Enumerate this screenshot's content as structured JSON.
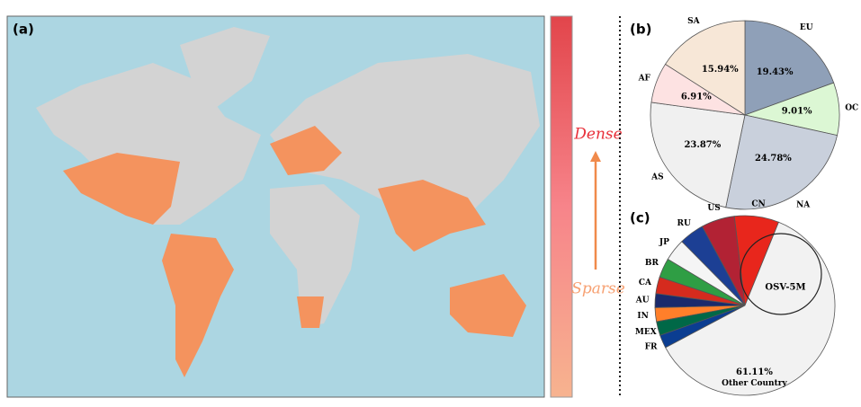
{
  "map": {
    "panel_label": "(a)",
    "dense_label": "Dense",
    "sparse_label": "Sparse"
  },
  "chart_data": [
    {
      "type": "pie",
      "panel_label": "(b)",
      "categories": [
        "EU",
        "OC",
        "NA",
        "AS",
        "AF",
        "SA"
      ],
      "values": [
        19.43,
        9.01,
        24.78,
        23.87,
        6.91,
        15.94
      ],
      "value_labels": [
        "19.43%",
        "9.01%",
        "24.78%",
        "23.87%",
        "6.91%",
        "15.94%"
      ],
      "colors": [
        "#8fa0b8",
        "#dcf7d4",
        "#c9d0dc",
        "#f0f0f0",
        "#fde2e2",
        "#f7e7d7"
      ]
    },
    {
      "type": "pie",
      "panel_label": "(c)",
      "annotation": "OSV-5M",
      "categories": [
        "CN",
        "US",
        "RU",
        "JP",
        "BR",
        "CA",
        "AU",
        "IN",
        "MEX",
        "FR",
        "Other Country"
      ],
      "values": [
        8,
        6,
        4.5,
        4,
        3.5,
        3,
        2.5,
        2.5,
        2.5,
        2.39,
        61.11
      ],
      "value_labels": [
        null,
        null,
        null,
        null,
        null,
        null,
        null,
        null,
        null,
        null,
        "61.11%"
      ],
      "colors": [
        "#e8261c",
        "#b22234",
        "#1c3f94",
        "#f5f5f5",
        "#2f9e44",
        "#d52b1e",
        "#1a2a6c",
        "#ff7f2a",
        "#006847",
        "#0b3d91",
        "#f2f2f2"
      ]
    }
  ]
}
